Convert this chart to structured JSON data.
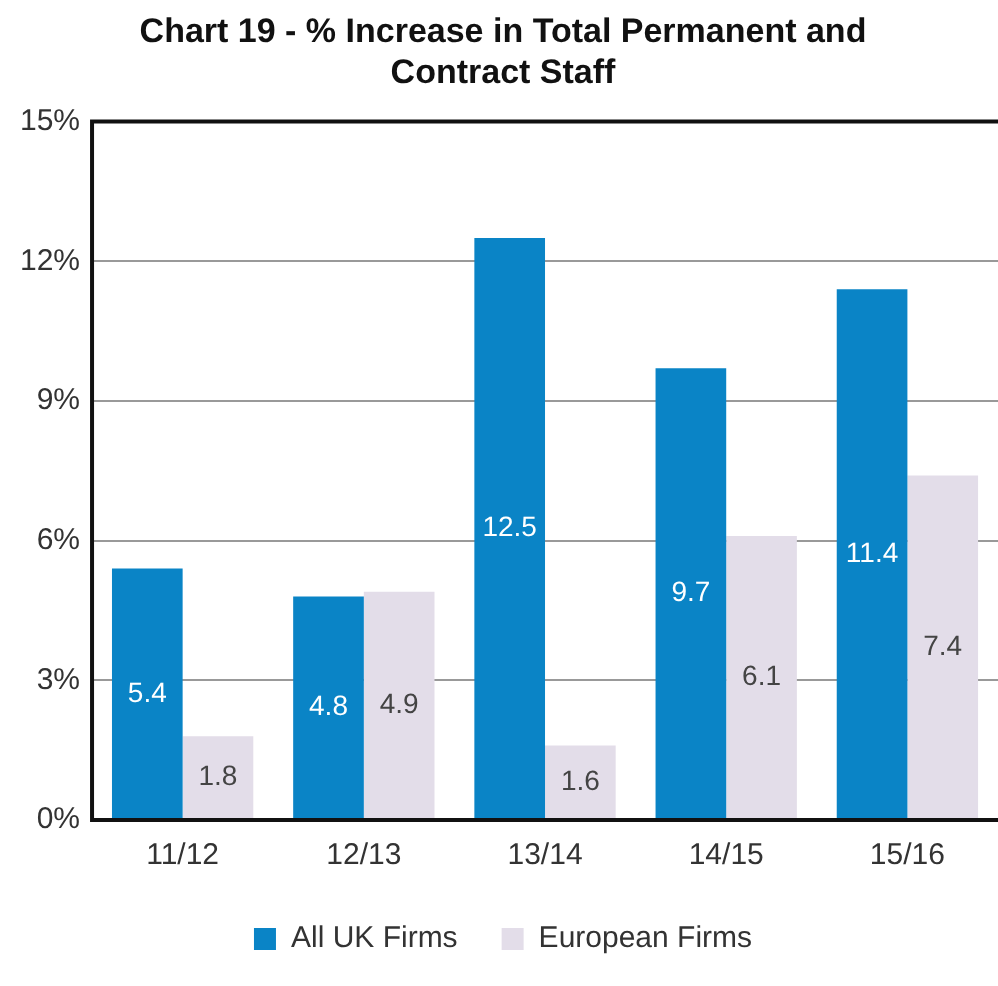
{
  "chart_data": {
    "type": "bar",
    "title": "Chart 19 - % Increase in Total Permanent and Contract Staff",
    "categories": [
      "11/12",
      "12/13",
      "13/14",
      "14/15",
      "15/16"
    ],
    "series": [
      {
        "name": "All UK Firms",
        "color": "#0a84c6",
        "values": [
          5.4,
          4.8,
          12.5,
          9.7,
          11.4
        ]
      },
      {
        "name": "European Firms",
        "color": "#e3dde9",
        "values": [
          1.8,
          4.9,
          1.6,
          6.1,
          7.4
        ]
      }
    ],
    "ylim": [
      0,
      15
    ],
    "yticks": [
      {
        "value": 0,
        "label": "0%"
      },
      {
        "value": 3,
        "label": "3%"
      },
      {
        "value": 6,
        "label": "6%"
      },
      {
        "value": 9,
        "label": "9%"
      },
      {
        "value": 12,
        "label": "12%"
      },
      {
        "value": 15,
        "label": "15%"
      }
    ],
    "grid": "y",
    "legend": "bottom",
    "data_labels": true
  }
}
